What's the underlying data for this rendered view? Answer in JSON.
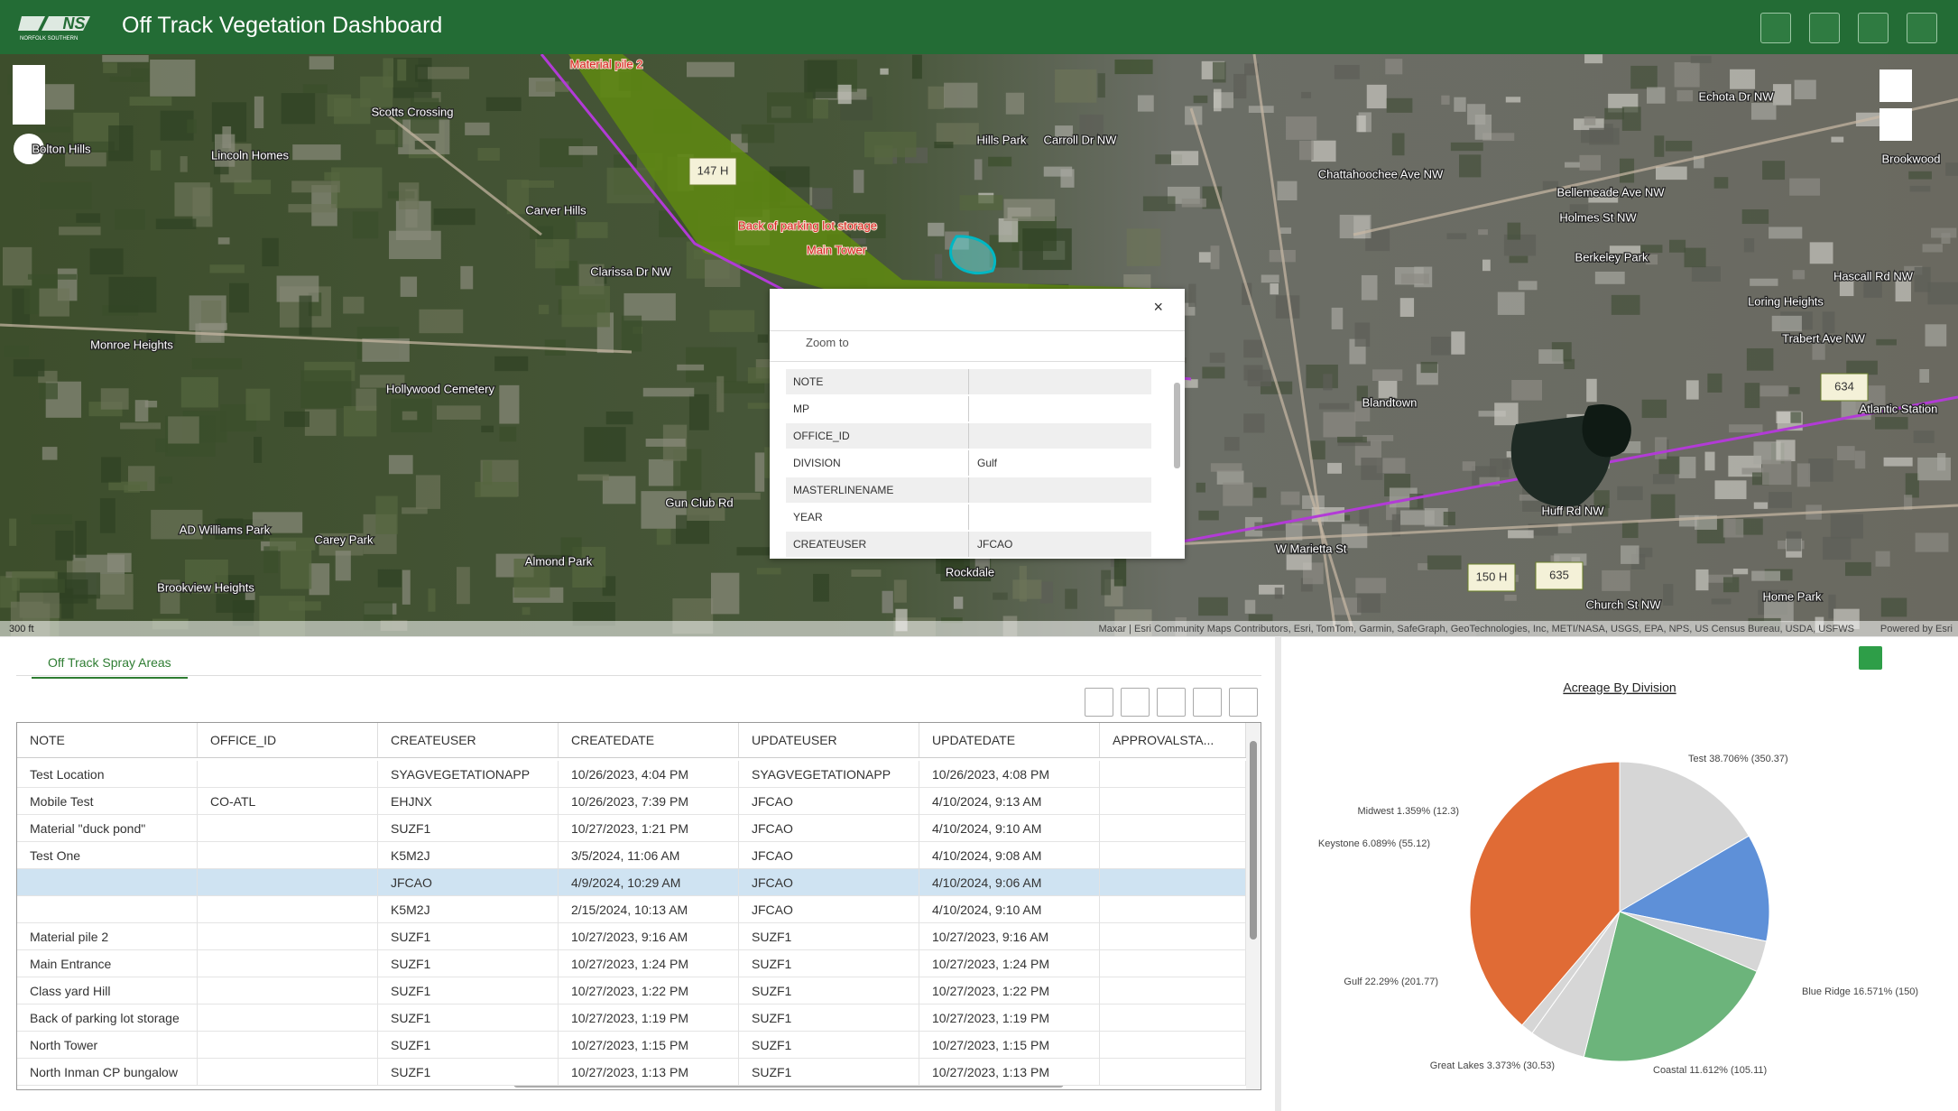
{
  "header": {
    "title": "Off Track Vegetation Dashboard",
    "logo": "NS",
    "logo_sub": "NORFOLK SOUTHERN"
  },
  "map": {
    "labels": [
      "Bolton Hills",
      "Lincoln Homes",
      "Scotts Crossing",
      "Carver Hills",
      "Hills Park",
      "Monroe Heights",
      "Hollywood Cemetery",
      "Carey Park",
      "Brookview Heights",
      "AD Williams Park",
      "Almond Park",
      "Rockdale",
      "Gun Club Rd",
      "Berkeley Park",
      "Loring Heights",
      "Blandtown",
      "Atlantic Station",
      "Home Park",
      "Brookwood",
      "Chattahoochee Ave NW",
      "W Marietta St",
      "Huff Rd NW",
      "Holmes St NW",
      "Hascall Rd NW",
      "Echota Dr NW",
      "Carroll Dr NW",
      "Clarissa Dr NW",
      "Bellemeade Ave NW",
      "Church St NW",
      "Trabert Ave NW"
    ],
    "features": [
      "Material pile 2",
      "Back of parking lot storage",
      "Main Tower"
    ],
    "markers": [
      "147 H",
      "150 H",
      "635",
      "634"
    ],
    "scale": "300 ft",
    "attribution": "Maxar | Esri Community Maps Contributors, Esri, TomTom, Garmin, SafeGraph, GeoTechnologies, Inc, METI/NASA, USGS, EPA, NPS, US Census Bureau, USDA, USFWS",
    "powered_by": "Powered by Esri"
  },
  "popup": {
    "zoom_to": "Zoom to",
    "fields": [
      [
        "NOTE",
        null
      ],
      [
        "MP",
        null
      ],
      [
        "OFFICE_ID",
        null
      ],
      [
        "DIVISION",
        "Gulf"
      ],
      [
        "MASTERLINENAME",
        null
      ],
      [
        "YEAR",
        null
      ],
      [
        "CREATEUSER",
        "JFCAO"
      ]
    ]
  },
  "table": {
    "tab": "Off Track Spray Areas",
    "columns": [
      "NOTE",
      "OFFICE_ID",
      "CREATEUSER",
      "CREATEDATE",
      "UPDATEUSER",
      "UPDATEDATE",
      "APPROVALSTA..."
    ],
    "selected_row": 4,
    "rows": [
      [
        "Test Location",
        null,
        "SYAGVEGETATIONAPP",
        "10/26/2023, 4:04 PM",
        "SYAGVEGETATIONAPP",
        "10/26/2023, 4:08 PM",
        null
      ],
      [
        "Mobile Test",
        "CO-ATL",
        "EHJNX",
        "10/26/2023, 7:39 PM",
        "JFCAO",
        "4/10/2024, 9:13 AM",
        null
      ],
      [
        "Material \"duck pond\"",
        null,
        "SUZF1",
        "10/27/2023, 1:21 PM",
        "JFCAO",
        "4/10/2024, 9:10 AM",
        null
      ],
      [
        "Test One",
        null,
        "K5M2J",
        "3/5/2024, 11:06 AM",
        "JFCAO",
        "4/10/2024, 9:08 AM",
        null
      ],
      [
        null,
        null,
        "JFCAO",
        "4/9/2024, 10:29 AM",
        "JFCAO",
        "4/10/2024, 9:06 AM",
        null
      ],
      [
        null,
        null,
        "K5M2J",
        "2/15/2024, 10:13 AM",
        "JFCAO",
        "4/10/2024, 9:10 AM",
        null
      ],
      [
        "Material pile 2",
        null,
        "SUZF1",
        "10/27/2023, 9:16 AM",
        "SUZF1",
        "10/27/2023, 9:16 AM",
        null
      ],
      [
        "Main Entrance",
        null,
        "SUZF1",
        "10/27/2023, 1:24 PM",
        "SUZF1",
        "10/27/2023, 1:24 PM",
        null
      ],
      [
        "Class yard Hill",
        null,
        "SUZF1",
        "10/27/2023, 1:22 PM",
        "SUZF1",
        "10/27/2023, 1:22 PM",
        null
      ],
      [
        "Back of parking lot storage",
        null,
        "SUZF1",
        "10/27/2023, 1:19 PM",
        "SUZF1",
        "10/27/2023, 1:19 PM",
        null
      ],
      [
        "North Tower",
        null,
        "SUZF1",
        "10/27/2023, 1:15 PM",
        "SUZF1",
        "10/27/2023, 1:15 PM",
        null
      ],
      [
        "North Inman CP bungalow",
        null,
        "SUZF1",
        "10/27/2023, 1:13 PM",
        "SUZF1",
        "10/27/2023, 1:13 PM",
        null
      ]
    ]
  },
  "chart_data": {
    "type": "pie",
    "title": "Acreage By Division",
    "values": [
      350.37,
      150,
      105.11,
      30.53,
      201.77,
      55.12,
      12.3
    ],
    "value_labels": [
      "Test 38.706% (350.37)",
      "Blue Ridge 16.571% (150)",
      "Coastal 11.612% (105.11)",
      "Great Lakes 3.373% (30.53)",
      "Gulf 22.29% (201.77)",
      "Keystone 6.089% (55.12)",
      "Midwest 1.359% (12.3)"
    ],
    "colors": [
      "#e06b35",
      "#d6d6d6",
      "#5e90d8",
      "#d6d6d6",
      "#6cb47b",
      "#d6d6d6",
      "#d6d6d6"
    ]
  }
}
